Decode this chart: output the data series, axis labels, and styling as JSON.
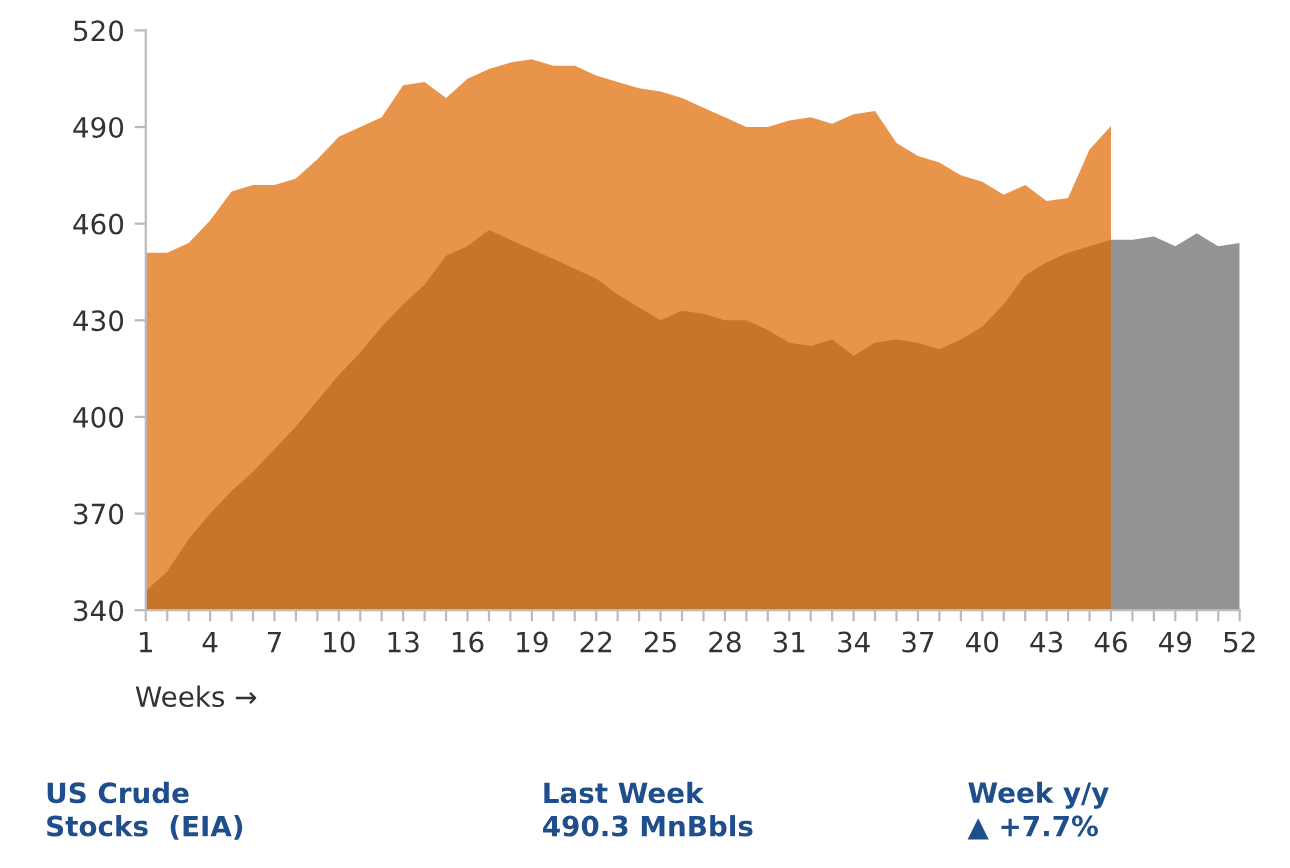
{
  "chart_data": {
    "type": "area",
    "xlabel": "Weeks →",
    "series": [
      {
        "color": "#e8944a",
        "x": [
          1,
          2,
          3,
          4,
          5,
          6,
          7,
          8,
          9,
          10,
          11,
          12,
          13,
          14,
          15,
          16,
          17,
          18,
          19,
          20,
          21,
          22,
          23,
          24,
          25,
          26,
          27,
          28,
          29,
          30,
          31,
          32,
          33,
          34,
          35,
          36,
          37,
          38,
          39,
          40,
          41,
          42,
          43,
          44,
          45,
          46
        ],
        "values": [
          451,
          451,
          454,
          461,
          470,
          472,
          472,
          474,
          480,
          487,
          490,
          493,
          503,
          504,
          499,
          505,
          508,
          510,
          511,
          509,
          509,
          506,
          504,
          502,
          501,
          499,
          496,
          493,
          490,
          490,
          492,
          493,
          491,
          494,
          495,
          485,
          481,
          479,
          475,
          473,
          469,
          472,
          467,
          468,
          483,
          490.3
        ]
      },
      {
        "color": "#c8752c",
        "x": [
          1,
          2,
          3,
          4,
          5,
          6,
          7,
          8,
          9,
          10,
          11,
          12,
          13,
          14,
          15,
          16,
          17,
          18,
          19,
          20,
          21,
          22,
          23,
          24,
          25,
          26,
          27,
          28,
          29,
          30,
          31,
          32,
          33,
          34,
          35,
          36,
          37,
          38,
          39,
          40,
          41,
          42,
          43,
          44,
          45,
          46
        ],
        "values": [
          346,
          352,
          362,
          370,
          377,
          383,
          390,
          397,
          405,
          413,
          420,
          428,
          435,
          441,
          450,
          453,
          458,
          455,
          452,
          449,
          446,
          443,
          438,
          434,
          430,
          433,
          432,
          430,
          430,
          427,
          423,
          422,
          424,
          419,
          423,
          424,
          423,
          421,
          424,
          428,
          435,
          444,
          448,
          451,
          453,
          455
        ]
      },
      {
        "color": "#939393",
        "x": [
          46,
          47,
          48,
          49,
          50,
          51,
          52
        ],
        "values": [
          455,
          455,
          456,
          453,
          457,
          453,
          454
        ]
      }
    ],
    "xlim": [
      1,
      52
    ],
    "xticks": [
      1,
      {
        "value": 2,
        "label": null
      },
      {
        "value": 3,
        "label": null
      },
      4,
      {
        "value": 5,
        "label": null
      },
      {
        "value": 6,
        "label": null
      },
      7,
      {
        "value": 8,
        "label": null
      },
      {
        "value": 9,
        "label": null
      },
      10,
      {
        "value": 11,
        "label": null
      },
      {
        "value": 12,
        "label": null
      },
      13,
      {
        "value": 14,
        "label": null
      },
      {
        "value": 15,
        "label": null
      },
      16,
      {
        "value": 17,
        "label": null
      },
      {
        "value": 18,
        "label": null
      },
      19,
      {
        "value": 20,
        "label": null
      },
      {
        "value": 21,
        "label": null
      },
      22,
      {
        "value": 23,
        "label": null
      },
      {
        "value": 24,
        "label": null
      },
      25,
      {
        "value": 26,
        "label": null
      },
      {
        "value": 27,
        "label": null
      },
      28,
      {
        "value": 29,
        "label": null
      },
      {
        "value": 30,
        "label": null
      },
      31,
      {
        "value": 32,
        "label": null
      },
      {
        "value": 33,
        "label": null
      },
      34,
      {
        "value": 35,
        "label": null
      },
      {
        "value": 36,
        "label": null
      },
      37,
      {
        "value": 38,
        "label": null
      },
      {
        "value": 39,
        "label": null
      },
      40,
      {
        "value": 41,
        "label": null
      },
      {
        "value": 42,
        "label": null
      },
      43,
      {
        "value": 44,
        "label": null
      },
      {
        "value": 45,
        "label": null
      },
      46,
      {
        "value": 47,
        "label": null
      },
      {
        "value": 48,
        "label": null
      },
      49,
      {
        "value": 50,
        "label": null
      },
      {
        "value": 51,
        "label": null
      },
      52
    ],
    "ylim": [
      340,
      520
    ],
    "yticks": [
      340,
      370,
      400,
      430,
      460,
      490,
      520
    ],
    "grid": false,
    "legend": false,
    "annotations": [
      "US Crude\nStocks  (EIA)",
      "Last Week\n490.3 MnBbls",
      "Week y/y\n▲ +7.7%"
    ]
  }
}
